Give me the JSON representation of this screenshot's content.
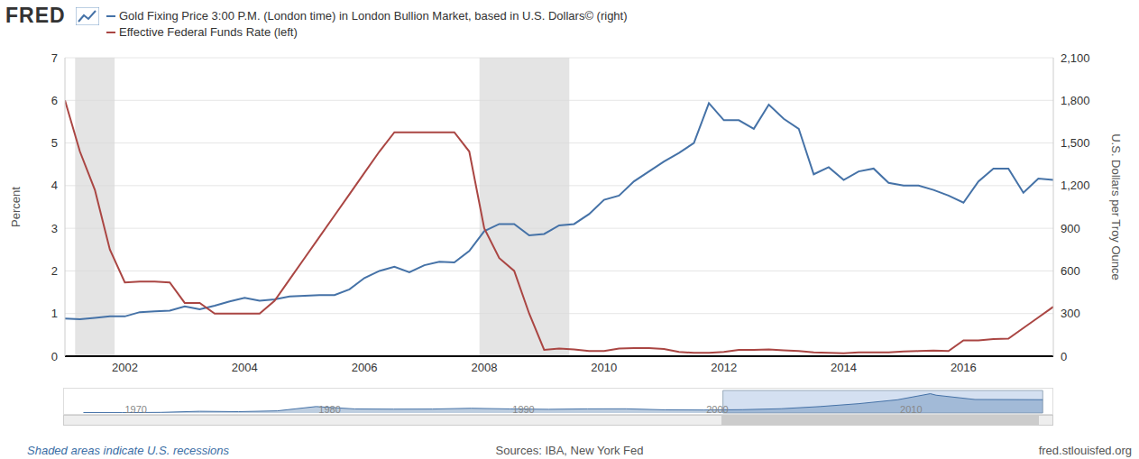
{
  "brand": "FRED",
  "note": "Shaded areas indicate U.S. recessions",
  "source": "Sources: IBA, New York Fed",
  "url": "fred.stlouisfed.org",
  "chart_data": [
    {
      "type": "line",
      "legend": "top-left",
      "grid": true,
      "y_label": "Percent",
      "y2_label": "U.S. Dollars per Troy Ounce",
      "xlim": [
        2001,
        2017.5
      ],
      "xticks": [
        2002,
        2004,
        2006,
        2008,
        2010,
        2012,
        2014,
        2016
      ],
      "ylim": [
        0,
        7
      ],
      "yticks": [
        0,
        1,
        2,
        3,
        4,
        5,
        6,
        7
      ],
      "y2lim": [
        0,
        2100
      ],
      "y2ticks": [
        0,
        300,
        600,
        900,
        {
          "value": 1200,
          "label": "1,200"
        },
        {
          "value": 1500,
          "label": "1,500"
        },
        {
          "value": 1800,
          "label": "1,800"
        },
        {
          "value": 2100,
          "label": "2,100"
        }
      ],
      "recessions": [
        [
          2001.17,
          2001.83
        ],
        [
          2007.92,
          2009.42
        ]
      ],
      "x": [
        2001,
        2001.25,
        2001.5,
        2001.75,
        2002,
        2002.25,
        2002.5,
        2002.75,
        2003,
        2003.25,
        2003.5,
        2003.75,
        2004,
        2004.25,
        2004.5,
        2004.75,
        2005,
        2005.25,
        2005.5,
        2005.75,
        2006,
        2006.25,
        2006.5,
        2006.75,
        2007,
        2007.25,
        2007.5,
        2007.75,
        2008,
        2008.25,
        2008.5,
        2008.75,
        2009,
        2009.25,
        2009.5,
        2009.75,
        2010,
        2010.25,
        2010.5,
        2010.75,
        2011,
        2011.25,
        2011.5,
        2011.75,
        2012,
        2012.25,
        2012.5,
        2012.75,
        2013,
        2013.25,
        2013.5,
        2013.75,
        2014,
        2014.25,
        2014.5,
        2014.75,
        2015,
        2015.25,
        2015.5,
        2015.75,
        2016,
        2016.25,
        2016.5,
        2016.75,
        2017,
        2017.25,
        2017.5
      ],
      "series": [
        {
          "name": "Gold Fixing Price 3:00 P.M. (London time) in London Bullion Market, based in U.S. Dollars© (right)",
          "color": "#4572a7",
          "axis": "y2",
          "values": [
            265,
            260,
            270,
            280,
            280,
            310,
            315,
            320,
            350,
            330,
            355,
            385,
            410,
            390,
            400,
            420,
            425,
            430,
            430,
            470,
            550,
            600,
            630,
            590,
            640,
            665,
            660,
            740,
            880,
            930,
            930,
            850,
            860,
            920,
            930,
            1000,
            1100,
            1130,
            1230,
            1300,
            1370,
            1430,
            1500,
            1780,
            1660,
            1660,
            1600,
            1770,
            1670,
            1600,
            1280,
            1330,
            1240,
            1300,
            1320,
            1220,
            1200,
            1200,
            1170,
            1130,
            1080,
            1230,
            1320,
            1320,
            1150,
            1250,
            1240
          ]
        },
        {
          "name": "Effective Federal Funds Rate (left)",
          "color": "#aa4643",
          "values": [
            6.0,
            4.8,
            3.9,
            2.5,
            1.73,
            1.75,
            1.75,
            1.73,
            1.25,
            1.25,
            1.0,
            1.0,
            1.0,
            1.0,
            1.3,
            1.8,
            2.3,
            2.8,
            3.3,
            3.8,
            4.3,
            4.8,
            5.25,
            5.25,
            5.25,
            5.25,
            5.25,
            4.8,
            3.0,
            2.3,
            2.0,
            1.0,
            0.15,
            0.18,
            0.16,
            0.12,
            0.12,
            0.18,
            0.19,
            0.19,
            0.17,
            0.1,
            0.08,
            0.08,
            0.1,
            0.15,
            0.15,
            0.16,
            0.14,
            0.12,
            0.09,
            0.08,
            0.07,
            0.09,
            0.09,
            0.09,
            0.11,
            0.12,
            0.13,
            0.12,
            0.37,
            0.37,
            0.4,
            0.41,
            0.66,
            0.91,
            1.16
          ]
        }
      ]
    },
    {
      "type": "area",
      "tick_labels": "x",
      "xlim": [
        1967,
        2018
      ],
      "xticks": [
        1970,
        1980,
        1990,
        2000,
        2010
      ],
      "ylim": [
        0,
        2100
      ],
      "selection": [
        2001,
        2017.5
      ],
      "x": [
        1968,
        1970,
        1972,
        1974,
        1976,
        1978,
        1980,
        1982,
        1984,
        1986,
        1988,
        1990,
        1992,
        1994,
        1996,
        1998,
        2000,
        2002,
        2004,
        2006,
        2008,
        2010,
        2011.7,
        2012,
        2014,
        2016,
        2017.5
      ],
      "values": [
        39,
        36,
        58,
        160,
        125,
        200,
        600,
        380,
        360,
        370,
        440,
        380,
        345,
        385,
        390,
        295,
        280,
        310,
        400,
        600,
        870,
        1230,
        1800,
        1660,
        1260,
        1250,
        1240
      ],
      "color": "#4572a7"
    }
  ]
}
